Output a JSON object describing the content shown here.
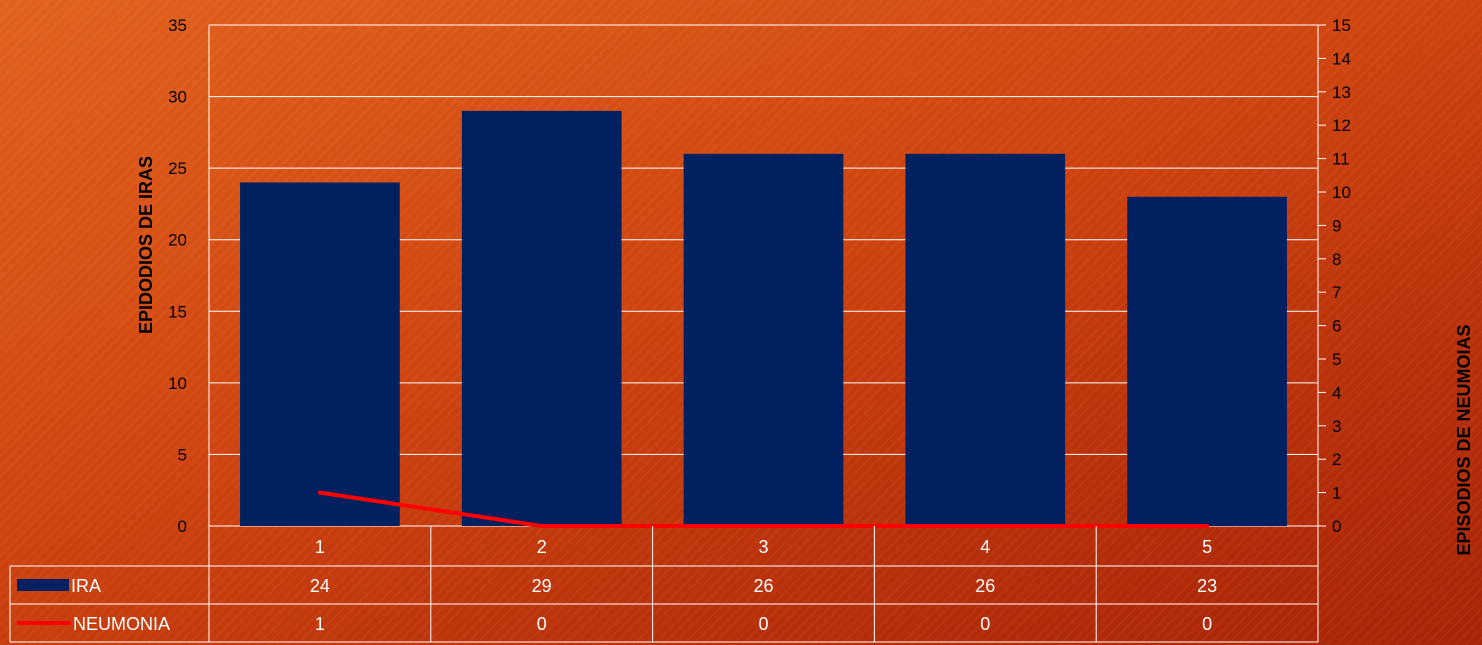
{
  "chart_data": {
    "type": "bar",
    "categories": [
      "1",
      "2",
      "3",
      "4",
      "5"
    ],
    "series": [
      {
        "name": "IRA",
        "type": "bar",
        "axis": "left",
        "values": [
          24,
          29,
          26,
          26,
          23
        ],
        "color": "#002060"
      },
      {
        "name": "NEUMONIA",
        "type": "line",
        "axis": "right",
        "values": [
          1,
          0,
          0,
          0,
          0
        ],
        "color": "#ff0000"
      }
    ],
    "ylabel": "EPIDODIOS DE IRAS",
    "y2label": "EPISODIOS DE NEUMOIAS",
    "ylim": [
      0,
      35
    ],
    "y2lim": [
      0,
      15
    ],
    "yticks": [
      "0",
      "5",
      "10",
      "15",
      "20",
      "25",
      "30",
      "35"
    ],
    "y2ticks": [
      "0",
      "1",
      "2",
      "3",
      "4",
      "5",
      "6",
      "7",
      "8",
      "9",
      "10",
      "11",
      "12",
      "13",
      "14",
      "15"
    ],
    "grid": true,
    "data_table": true,
    "gridline_color": "#ffffff"
  }
}
